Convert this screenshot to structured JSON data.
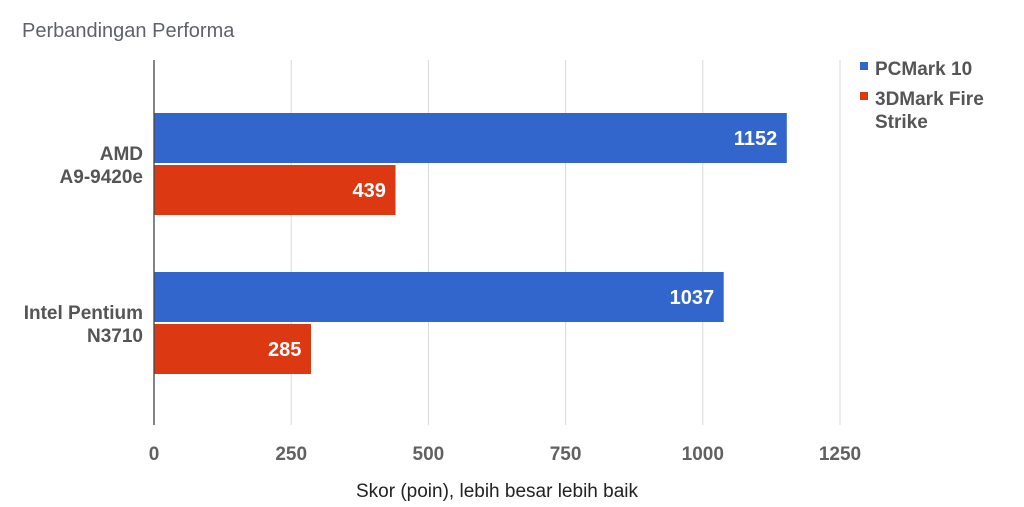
{
  "chart_data": {
    "type": "bar",
    "orientation": "horizontal",
    "title": "Perbandingan Performa",
    "xlabel": "Skor (poin), lebih besar lebih baik",
    "ylabel": "",
    "xlim": [
      0,
      1250
    ],
    "xticks": [
      0,
      250,
      500,
      750,
      1000,
      1250
    ],
    "grid": true,
    "legend_position": "right",
    "categories": [
      [
        "AMD",
        "A9-9420e"
      ],
      [
        "Intel Pentium",
        "N3710"
      ]
    ],
    "series": [
      {
        "name": "PCMark 10",
        "name_lines": [
          "PCMark 10"
        ],
        "color": "#3366cc",
        "values": [
          1152,
          1037
        ]
      },
      {
        "name": "3DMark Fire Strike",
        "name_lines": [
          "3DMark Fire",
          "Strike"
        ],
        "color": "#dc3912",
        "values": [
          439,
          285
        ]
      }
    ]
  }
}
